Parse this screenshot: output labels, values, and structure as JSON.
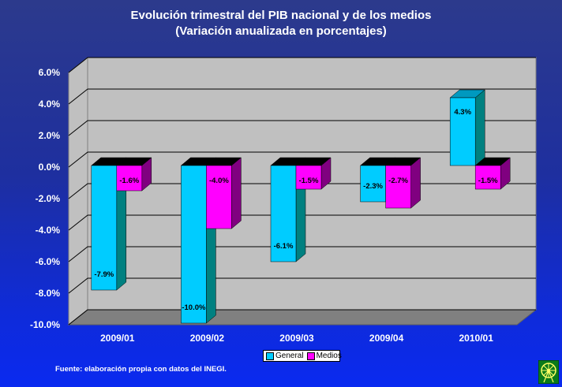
{
  "title_line1": "Evolución trimestral del PIB nacional y de los medios",
  "title_line2": "(Variación anualizada en porcentajes)",
  "source": "Fuente: elaboración propia con datos del INEGI.",
  "logo_icon": "ferris-wheel-icon",
  "chart_data": {
    "type": "bar",
    "categories": [
      "2009/01",
      "2009/02",
      "2009/03",
      "2009/04",
      "2010/01"
    ],
    "series": [
      {
        "name": "General",
        "values": [
          -7.9,
          -10.0,
          -6.1,
          -2.3,
          4.3
        ],
        "labels": [
          "-7.9%",
          "-10.0%",
          "-6.1%",
          "-2.3%",
          "4.3%"
        ],
        "color": "#00ccff"
      },
      {
        "name": "Medios",
        "values": [
          -1.6,
          -4.0,
          -1.5,
          -2.7,
          -1.5
        ],
        "labels": [
          "-1.6%",
          "-4.0%",
          "-1.5%",
          "-2.7%",
          "-1.5%"
        ],
        "color": "#ff00ff"
      }
    ],
    "ylim": [
      -10.0,
      6.0
    ],
    "yticks": [
      "6.0%",
      "4.0%",
      "2.0%",
      "0.0%",
      "-2.0%",
      "-4.0%",
      "-6.0%",
      "-8.0%",
      "-10.0%"
    ],
    "ytick_values": [
      6,
      4,
      2,
      0,
      -2,
      -4,
      -6,
      -8,
      -10
    ],
    "grid": true,
    "legend": "bottom-center",
    "wall_color": "#c0c0c0",
    "floor_color": "#808080"
  }
}
